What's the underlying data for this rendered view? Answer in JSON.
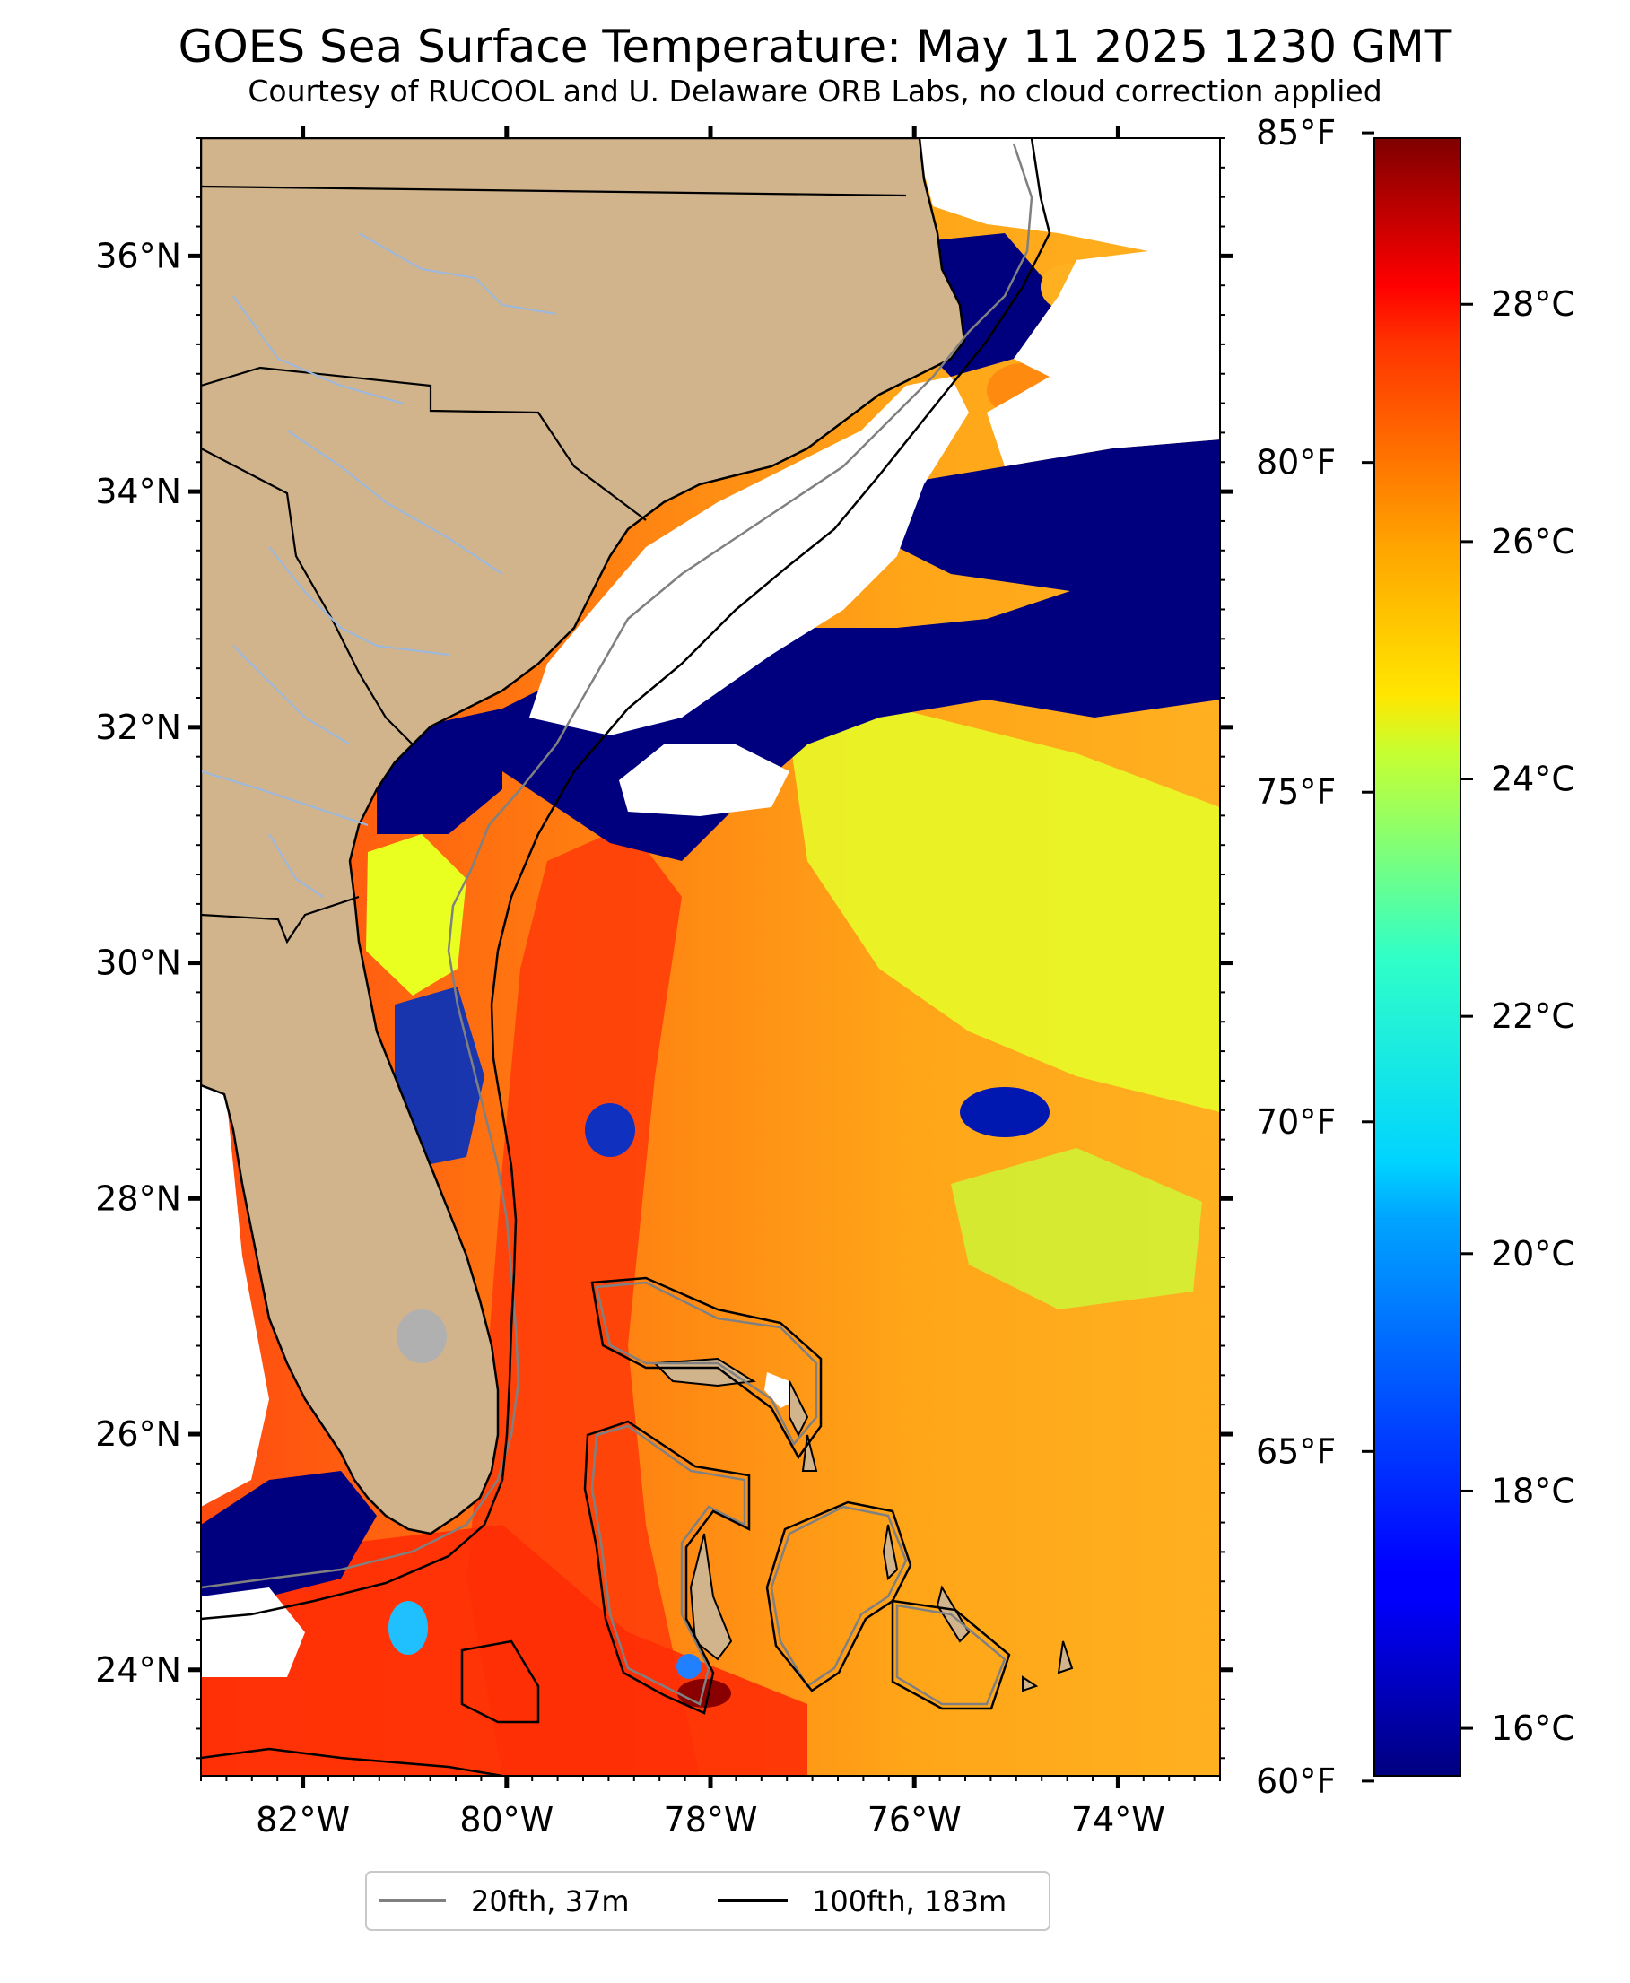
{
  "title": "GOES Sea Surface Temperature: May 11 2025 1230 GMT",
  "subtitle": "Courtesy of RUCOOL and U. Delaware ORB Labs, no cloud correction applied",
  "map": {
    "lon_range": [
      -83.0,
      -73.0
    ],
    "lat_range": [
      23.1,
      37.0
    ],
    "lat_ticks": [
      {
        "value": 36,
        "label": "36°N"
      },
      {
        "value": 34,
        "label": "34°N"
      },
      {
        "value": 32,
        "label": "32°N"
      },
      {
        "value": 30,
        "label": "30°N"
      },
      {
        "value": 28,
        "label": "28°N"
      },
      {
        "value": 26,
        "label": "26°N"
      },
      {
        "value": 24,
        "label": "24°N"
      }
    ],
    "lon_ticks": [
      {
        "value": -82,
        "label": "82°W"
      },
      {
        "value": -80,
        "label": "80°W"
      },
      {
        "value": -78,
        "label": "78°W"
      },
      {
        "value": -76,
        "label": "76°W"
      },
      {
        "value": -74,
        "label": "74°W"
      }
    ],
    "colors": {
      "land": "#d2b48c",
      "cloud": "#ffffff",
      "border": "#000000",
      "rivers": "#9ab8e0",
      "contour_20fth": "#808080",
      "contour_100fth": "#000000",
      "lake": "#b0b0b0"
    }
  },
  "colorbar": {
    "range_c": [
      15.6,
      29.4
    ],
    "celsius_ticks": [
      {
        "value": 16,
        "label": "16°C"
      },
      {
        "value": 18,
        "label": "18°C"
      },
      {
        "value": 20,
        "label": "20°C"
      },
      {
        "value": 22,
        "label": "22°C"
      },
      {
        "value": 24,
        "label": "24°C"
      },
      {
        "value": 26,
        "label": "26°C"
      },
      {
        "value": 28,
        "label": "28°C"
      }
    ],
    "fahrenheit_ticks": [
      {
        "value": 60,
        "label": "60°F"
      },
      {
        "value": 65,
        "label": "65°F"
      },
      {
        "value": 70,
        "label": "70°F"
      },
      {
        "value": 75,
        "label": "75°F"
      },
      {
        "value": 80,
        "label": "80°F"
      },
      {
        "value": 85,
        "label": "85°F"
      }
    ],
    "colormap": "jet"
  },
  "legend": {
    "items": [
      {
        "label": "20fth, 37m",
        "color": "#808080"
      },
      {
        "label": "100fth, 183m",
        "color": "#000000"
      }
    ]
  }
}
